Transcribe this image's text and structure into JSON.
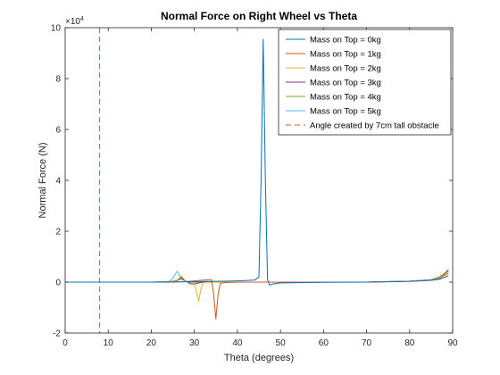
{
  "chart_data": {
    "type": "line",
    "title": "Normal Force on Right Wheel vs Theta",
    "xlabel": "Theta (degrees)",
    "ylabel": "Normal Force (N)",
    "xlim": [
      0,
      90
    ],
    "ylim": [
      -20000,
      100000
    ],
    "xticks": [
      0,
      10,
      20,
      30,
      40,
      50,
      60,
      70,
      80,
      90
    ],
    "yticks": [
      -20000,
      0,
      20000,
      40000,
      60000,
      80000,
      100000
    ],
    "ytick_labels": [
      "-2",
      "0",
      "2",
      "4",
      "6",
      "8",
      "10"
    ],
    "y_exponent_base": "×10",
    "y_exponent_power": "4",
    "grid": false,
    "legend_position": "top-right",
    "series": [
      {
        "name": "Mass on Top = 0kg",
        "color": "#0072BD",
        "x": [
          0,
          20,
          25,
          30,
          35,
          40,
          44,
          45,
          45.5,
          46,
          46.5,
          47,
          47.5,
          48,
          50,
          60,
          70,
          80,
          85,
          87,
          88,
          89
        ],
        "y": [
          0,
          0,
          50,
          200,
          300,
          500,
          800,
          2000,
          40000,
          95500,
          40000,
          1000,
          -1200,
          -800,
          -300,
          -100,
          0,
          300,
          700,
          1200,
          1800,
          2500
        ]
      },
      {
        "name": "Mass on Top = 1kg",
        "color": "#D95319",
        "x": [
          0,
          20,
          25,
          28,
          30,
          32,
          33,
          34,
          34.5,
          35,
          35.5,
          36,
          37,
          40,
          50,
          60,
          70,
          80,
          85,
          87,
          88,
          89
        ],
        "y": [
          0,
          0,
          100,
          200,
          500,
          800,
          900,
          1000,
          -5000,
          -14500,
          -5000,
          -500,
          -200,
          0,
          0,
          0,
          0,
          300,
          800,
          1500,
          2500,
          3500
        ]
      },
      {
        "name": "Mass on Top = 2kg",
        "color": "#EDB120",
        "x": [
          0,
          20,
          24,
          26,
          27,
          28,
          29,
          30,
          30.5,
          31,
          31.5,
          32,
          33,
          35,
          40,
          50,
          60,
          70,
          80,
          85,
          87,
          88,
          89
        ],
        "y": [
          0,
          0,
          100,
          800,
          2500,
          300,
          0,
          -300,
          -4000,
          -7500,
          -3000,
          -200,
          -100,
          0,
          0,
          0,
          0,
          0,
          400,
          900,
          1800,
          2800,
          4200
        ]
      },
      {
        "name": "Mass on Top = 3kg",
        "color": "#7E2F8E",
        "x": [
          0,
          20,
          24,
          26,
          27,
          28,
          29,
          30,
          31,
          32,
          35,
          40,
          50,
          60,
          70,
          80,
          85,
          87,
          88,
          89
        ],
        "y": [
          0,
          0,
          100,
          600,
          1500,
          400,
          -600,
          -800,
          -300,
          0,
          0,
          0,
          0,
          0,
          0,
          400,
          900,
          1800,
          3000,
          4500
        ]
      },
      {
        "name": "Mass on Top = 4kg",
        "color": "#77AC30",
        "x": [
          0,
          20,
          24,
          26,
          27,
          28,
          29,
          30,
          31,
          35,
          40,
          50,
          60,
          70,
          80,
          85,
          87,
          88,
          89
        ],
        "y": [
          0,
          0,
          100,
          800,
          2000,
          300,
          -200,
          -100,
          0,
          0,
          0,
          0,
          0,
          0,
          400,
          900,
          2000,
          3200,
          4800
        ]
      },
      {
        "name": "Mass on Top = 5kg",
        "color": "#4DBEEE",
        "x": [
          0,
          20,
          24,
          25,
          26,
          27,
          28,
          29,
          30,
          35,
          40,
          50,
          60,
          70,
          80,
          85,
          87,
          88,
          89
        ],
        "y": [
          0,
          0,
          200,
          1500,
          4300,
          1200,
          200,
          0,
          0,
          0,
          0,
          0,
          0,
          0,
          400,
          1000,
          2200,
          3400,
          5000
        ]
      }
    ],
    "vertical_line": {
      "name": "Angle created by 7cm tall obstacle",
      "x": 8,
      "color": "#D95319",
      "style": "dashed"
    }
  }
}
